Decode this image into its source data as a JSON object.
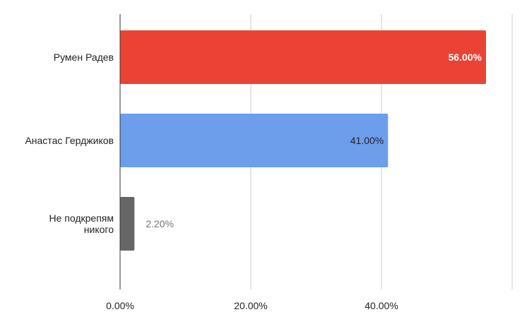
{
  "chart_data": {
    "type": "bar",
    "orientation": "horizontal",
    "title": "",
    "xlabel": "",
    "ylabel": "",
    "xlim": [
      0,
      60
    ],
    "grid": true,
    "legend": "none",
    "tick_values": [
      0,
      20,
      40
    ],
    "tick_labels": [
      "0.00%",
      "20.00%",
      "40.00%"
    ],
    "categories": [
      [
        "Румен Радев"
      ],
      [
        "Анастас Герджиков"
      ],
      [
        "Не подкрепям",
        "никого"
      ]
    ],
    "values": [
      56.0,
      41.0,
      2.2
    ],
    "data_labels": [
      "56.00%",
      "41.00%",
      "2.20%"
    ],
    "colors": [
      "#ea4335",
      "#6d9eeb",
      "#666666"
    ],
    "data_label_colors": [
      "#ffffff",
      "#222222",
      "#757575"
    ],
    "data_label_placement": [
      "inside",
      "inside",
      "outside"
    ]
  }
}
